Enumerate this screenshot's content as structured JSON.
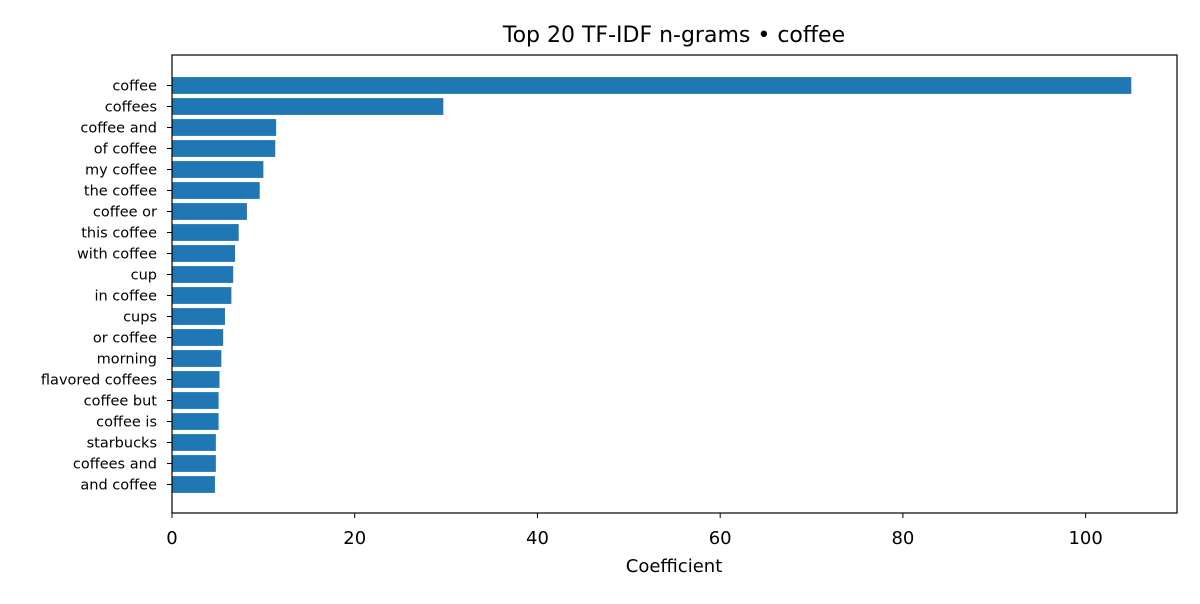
{
  "chart_data": {
    "type": "bar",
    "orientation": "horizontal",
    "title": "Top 20 TF-IDF n-grams • coffee",
    "xlabel": "Coefficient",
    "ylabel": "",
    "xlim": [
      0,
      110
    ],
    "x_ticks": [
      0,
      20,
      40,
      60,
      80,
      100
    ],
    "grid": false,
    "legend": "none",
    "bar_color": "#1f77b4",
    "categories": [
      "coffee",
      "coffees",
      "coffee and",
      "of coffee",
      "my coffee",
      "the coffee",
      "coffee or",
      "this coffee",
      "with coffee",
      "cup",
      "in coffee",
      "cups",
      "or coffee",
      "morning",
      "flavored coffees",
      "coffee but",
      "coffee is",
      "starbucks",
      "coffees and",
      "and coffee"
    ],
    "values": [
      105.0,
      29.7,
      11.4,
      11.3,
      10.0,
      9.6,
      8.2,
      7.3,
      6.9,
      6.7,
      6.5,
      5.8,
      5.6,
      5.4,
      5.2,
      5.1,
      5.1,
      4.8,
      4.8,
      4.7
    ]
  }
}
